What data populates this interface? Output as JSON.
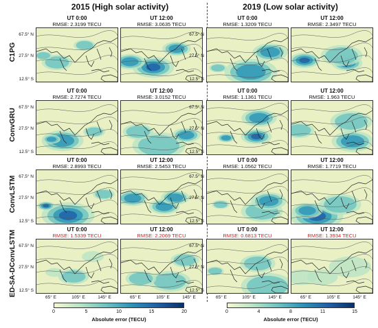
{
  "groups": [
    {
      "title": "2015 (High solar activity)"
    },
    {
      "title": "2019 (Low solar activity)"
    }
  ],
  "rows": [
    {
      "label": "C1PG",
      "panels": [
        {
          "time": "UT 0:00",
          "rmse": "RMSE: 2.3199 TECU",
          "highlight": false
        },
        {
          "time": "UT 12:00",
          "rmse": "RMSE: 3.0635 TECU",
          "highlight": false
        },
        {
          "time": "UT 0:00",
          "rmse": "RMSE: 1.3209 TECU",
          "highlight": false
        },
        {
          "time": "UT 12:00",
          "rmse": "RMSE: 2.3497 TECU",
          "highlight": false
        }
      ]
    },
    {
      "label": "ConvGRU",
      "panels": [
        {
          "time": "UT 0:00",
          "rmse": "RMSE: 2.7274 TECU",
          "highlight": false
        },
        {
          "time": "UT 12:00",
          "rmse": "RMSE: 3.0152 TECU",
          "highlight": false
        },
        {
          "time": "UT 0:00",
          "rmse": "RMSE: 1.1361 TECU",
          "highlight": false
        },
        {
          "time": "UT 12:00",
          "rmse": "RMSE: 1.963 TECU",
          "highlight": false
        }
      ]
    },
    {
      "label": "ConvLSTM",
      "panels": [
        {
          "time": "UT 0:00",
          "rmse": "RMSE: 2.8993 TECU",
          "highlight": false
        },
        {
          "time": "UT 12:00",
          "rmse": "RMSE: 2.5453 TECU",
          "highlight": false
        },
        {
          "time": "UT 0:00",
          "rmse": "RMSE: 1.0562 TECU",
          "highlight": false
        },
        {
          "time": "UT 12:00",
          "rmse": "RMSE: 1.7719 TECU",
          "highlight": false
        }
      ]
    },
    {
      "label": "ED-SA-DConvLSTM",
      "panels": [
        {
          "time": "UT 0:00",
          "rmse": "RMSE: 1.5339 TECU",
          "highlight": true
        },
        {
          "time": "UT 12:00",
          "rmse": "RMSE: 2.2069 TECU",
          "highlight": true
        },
        {
          "time": "UT 0:00",
          "rmse": "RMSE: 0.6813 TECU",
          "highlight": true
        },
        {
          "time": "UT 12:00",
          "rmse": "RMSE: 1.3934 TECU",
          "highlight": true
        }
      ]
    }
  ],
  "lat_ticks": [
    "67.5° N",
    "27.5° N",
    "12.5° S"
  ],
  "lon_ticks": [
    "65° E",
    "105° E",
    "145° E"
  ],
  "colorbars": [
    {
      "ticks": [
        "0",
        "5",
        "10",
        "15",
        "20"
      ],
      "label": "Absolute error (TECU)"
    },
    {
      "ticks": [
        "0",
        "4",
        "8",
        "11",
        "15"
      ],
      "label": "Absolute error (TECU)"
    }
  ],
  "colors": {
    "map_background": "#e8f0c4",
    "error_low": "#f4f8d0",
    "error_high": "#08306b",
    "highlight_text": "#d02020",
    "divider": "#6a2a8a"
  }
}
